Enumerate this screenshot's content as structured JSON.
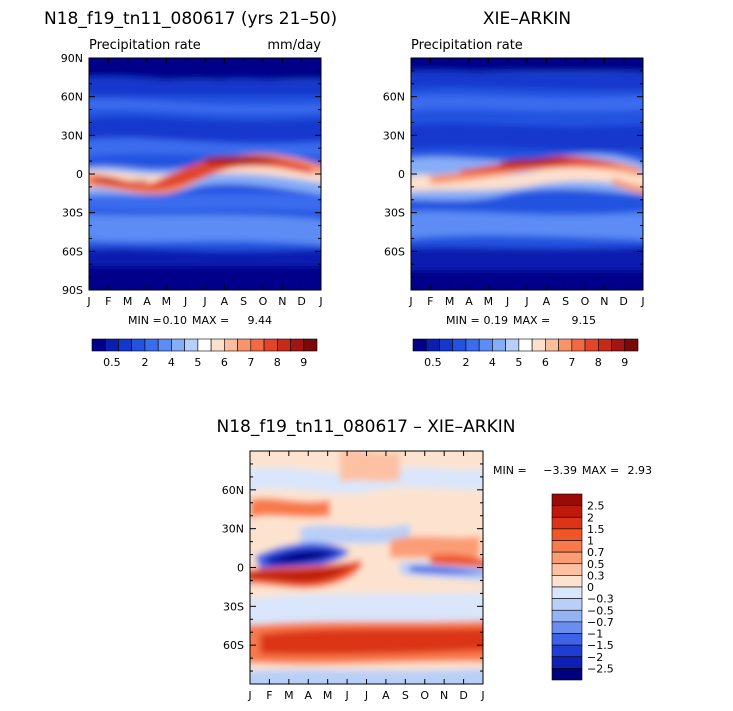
{
  "chart_data": [
    {
      "type": "heatmap",
      "title": "N18_f19_tn11_080617 (yrs 21–50)",
      "subtitle_left": "Precipitation rate",
      "subtitle_right": "mm/day",
      "x_tick_labels": [
        "J",
        "F",
        "M",
        "A",
        "M",
        "J",
        "J",
        "A",
        "S",
        "O",
        "N",
        "D",
        "J"
      ],
      "y_tick_labels": [
        "90N",
        "60N",
        "30N",
        "0",
        "30S",
        "60S",
        "90S"
      ],
      "ylim": [
        -90,
        90
      ],
      "stats": {
        "min_label": "MIN =",
        "min": "0.10",
        "max_label": "MAX =",
        "max": "9.44"
      },
      "colorbar": {
        "labels": [
          "0.5",
          "2",
          "4",
          "5",
          "6",
          "7",
          "8",
          "9"
        ],
        "colors": [
          "#00008a",
          "#0a1fb0",
          "#1437cc",
          "#2352e0",
          "#3a6cee",
          "#5c8cf4",
          "#86adf7",
          "#b5d0fa",
          "#ffffff",
          "#fde0cc",
          "#fbbd9d",
          "#f8946c",
          "#f16a43",
          "#e2452a",
          "#c62a19",
          "#a11612",
          "#7a0a0a"
        ]
      },
      "values_description": "ITCZ band near equator: max ~9.4 mm/day north of equator in Jun-Oct, south of equator (~5S) Dec-Apr; minima <0.5 mm/day at poles"
    },
    {
      "type": "heatmap",
      "title": "XIE–ARKIN",
      "subtitle_left": "Precipitation rate",
      "x_tick_labels": [
        "J",
        "F",
        "M",
        "A",
        "M",
        "J",
        "J",
        "A",
        "S",
        "O",
        "N",
        "D",
        "J"
      ],
      "y_tick_labels": [
        "60N",
        "30N",
        "0",
        "30S",
        "60S"
      ],
      "ylim": [
        -90,
        90
      ],
      "stats": {
        "min_label": "MIN =",
        "min": "0.19",
        "max_label": "MAX =",
        "max": "9.15"
      },
      "colorbar": {
        "labels": [
          "0.5",
          "2",
          "4",
          "5",
          "6",
          "7",
          "8",
          "9"
        ],
        "colors": [
          "#00008a",
          "#0a1fb0",
          "#1437cc",
          "#2352e0",
          "#3a6cee",
          "#5c8cf4",
          "#86adf7",
          "#b5d0fa",
          "#ffffff",
          "#fde0cc",
          "#fbbd9d",
          "#f8946c",
          "#f16a43",
          "#e2452a",
          "#c62a19",
          "#a11612",
          "#7a0a0a"
        ]
      }
    },
    {
      "type": "heatmap",
      "title": "N18_f19_tn11_080617 – XIE–ARKIN",
      "x_tick_labels": [
        "J",
        "F",
        "M",
        "A",
        "M",
        "J",
        "J",
        "A",
        "S",
        "O",
        "N",
        "D",
        "J"
      ],
      "y_tick_labels": [
        "60N",
        "30N",
        "0",
        "30S",
        "60S"
      ],
      "ylim": [
        -90,
        90
      ],
      "stats": {
        "min_label": "MIN =",
        "min": "−3.39",
        "max_label": "MAX =",
        "max": "2.93"
      },
      "colorbar": {
        "labels": [
          "2.5",
          "2",
          "1.5",
          "1",
          "0.7",
          "0.5",
          "0.3",
          "0",
          "−0.3",
          "−0.5",
          "−0.7",
          "−1",
          "−1.5",
          "−2",
          "−2.5"
        ],
        "colors": [
          "#9a0b05",
          "#bd1a0c",
          "#dc3417",
          "#f05628",
          "#f8794a",
          "#fb9c74",
          "#fcc1a2",
          "#fde3cf",
          "#d9e6fb",
          "#b8cff8",
          "#95b3f3",
          "#6b8eee",
          "#3f63e6",
          "#1f3cd3",
          "#0f1fb5",
          "#00007e"
        ]
      },
      "values_description": "Model minus obs: negative bias up to -3.4 (blue) near 10N Feb-May and around 5S Sep-Jan; positive bias up to 2.9 (red) near 5S Jan-May, 10N Oct-Dec and along 50-60S"
    }
  ]
}
